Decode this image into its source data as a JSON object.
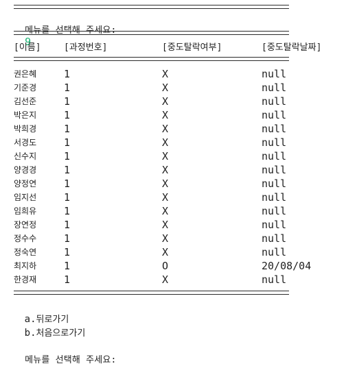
{
  "console": {
    "prompt_label": "메뉴를 선택해 주세요:",
    "prompt_answer": "9",
    "table": {
      "headers": [
        "[이름]",
        "[과정번호]",
        "[중도탈락여부]",
        "[중도탈락날짜]"
      ],
      "rows": [
        {
          "name": "권은혜",
          "course": "1",
          "dropout": "X",
          "date": "null"
        },
        {
          "name": "기준경",
          "course": "1",
          "dropout": "X",
          "date": "null"
        },
        {
          "name": "김선준",
          "course": "1",
          "dropout": "X",
          "date": "null"
        },
        {
          "name": "박은지",
          "course": "1",
          "dropout": "X",
          "date": "null"
        },
        {
          "name": "박희경",
          "course": "1",
          "dropout": "X",
          "date": "null"
        },
        {
          "name": "서경도",
          "course": "1",
          "dropout": "X",
          "date": "null"
        },
        {
          "name": "신수지",
          "course": "1",
          "dropout": "X",
          "date": "null"
        },
        {
          "name": "양경경",
          "course": "1",
          "dropout": "X",
          "date": "null"
        },
        {
          "name": "양정연",
          "course": "1",
          "dropout": "X",
          "date": "null"
        },
        {
          "name": "임지선",
          "course": "1",
          "dropout": "X",
          "date": "null"
        },
        {
          "name": "임희유",
          "course": "1",
          "dropout": "X",
          "date": "null"
        },
        {
          "name": "장연정",
          "course": "1",
          "dropout": "X",
          "date": "null"
        },
        {
          "name": "정수수",
          "course": "1",
          "dropout": "X",
          "date": "null"
        },
        {
          "name": "정숙연",
          "course": "1",
          "dropout": "X",
          "date": "null"
        },
        {
          "name": "최지하",
          "course": "1",
          "dropout": "O",
          "date": "20/08/04"
        },
        {
          "name": "한경재",
          "course": "1",
          "dropout": "X",
          "date": "null"
        }
      ]
    },
    "menu": [
      {
        "key": "a.",
        "label": "뒤로가기"
      },
      {
        "key": "b.",
        "label": "처음으로가기"
      }
    ],
    "final_prompt": "메뉴를 선택해 주세요:",
    "colors": {
      "input_answer": "#16b070",
      "text": "#1f1f1f"
    }
  }
}
